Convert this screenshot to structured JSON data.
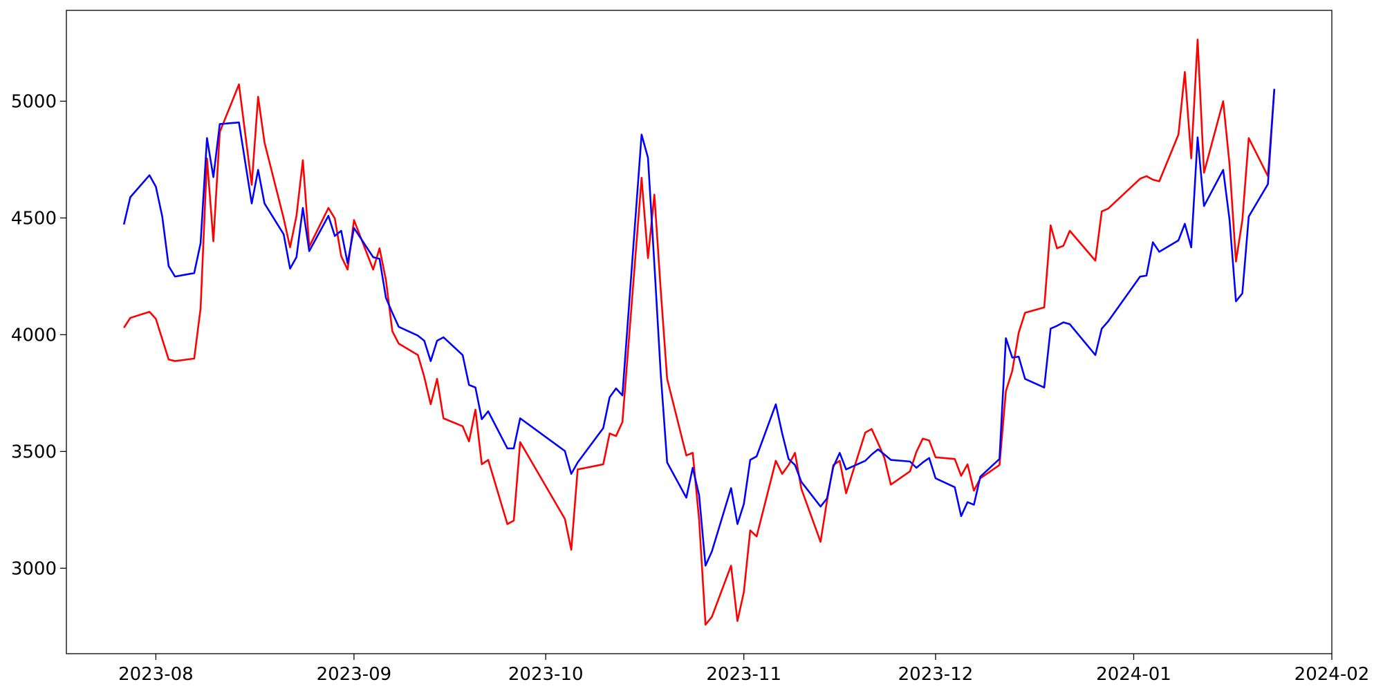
{
  "chart_data": {
    "type": "line",
    "x": [
      19565,
      19566,
      19569,
      19570,
      19571,
      19572,
      19573,
      19576,
      19577,
      19578,
      19579,
      19580,
      19583,
      19585,
      19586,
      19587,
      19590,
      19591,
      19592,
      19593,
      19594,
      19597,
      19598,
      19599,
      19600,
      19601,
      19604,
      19605,
      19606,
      19607,
      19608,
      19611,
      19612,
      19613,
      19614,
      19615,
      19618,
      19619,
      19620,
      19621,
      19622,
      19625,
      19626,
      19627,
      19634,
      19635,
      19636,
      19640,
      19641,
      19642,
      19643,
      19646,
      19647,
      19648,
      19649,
      19650,
      19653,
      19654,
      19655,
      19656,
      19657,
      19660,
      19661,
      19662,
      19663,
      19664,
      19667,
      19668,
      19669,
      19670,
      19671,
      19674,
      19675,
      19676,
      19677,
      19678,
      19681,
      19682,
      19683,
      19684,
      19685,
      19688,
      19689,
      19690,
      19691,
      19692,
      19695,
      19696,
      19697,
      19698,
      19699,
      19702,
      19703,
      19704,
      19705,
      19706,
      19709,
      19710,
      19711,
      19712,
      19713,
      19717,
      19718,
      19719,
      19724,
      19725,
      19726,
      19727,
      19730,
      19731,
      19732,
      19733,
      19734,
      19737,
      19738,
      19739,
      19740,
      19741,
      19744,
      19745
    ],
    "series": [
      {
        "color": "#ff0000",
        "values": [
          4030,
          4072,
          4098,
          4068,
          3981,
          3894,
          3887,
          3898,
          4113,
          4755,
          4400,
          4868,
          5072,
          4642,
          5019,
          4823,
          4498,
          4374,
          4509,
          4747,
          4377,
          4543,
          4498,
          4336,
          4279,
          4491,
          4279,
          4370,
          4234,
          4015,
          3962,
          3913,
          3819,
          3702,
          3811,
          3642,
          3608,
          3543,
          3679,
          3445,
          3464,
          3189,
          3204,
          3540,
          3211,
          3079,
          3423,
          3445,
          3577,
          3566,
          3626,
          4672,
          4328,
          4600,
          4189,
          3811,
          3483,
          3494,
          3208,
          2758,
          2792,
          3011,
          2774,
          2898,
          3162,
          3136,
          3460,
          3404,
          3442,
          3494,
          3340,
          3113,
          3287,
          3442,
          3460,
          3321,
          3581,
          3596,
          3536,
          3472,
          3358,
          3415,
          3498,
          3555,
          3547,
          3475,
          3468,
          3396,
          3445,
          3332,
          3385,
          3442,
          3758,
          3845,
          4008,
          4094,
          4117,
          4468,
          4370,
          4381,
          4445,
          4317,
          4528,
          4540,
          4668,
          4679,
          4664,
          4657,
          4857,
          5125,
          4755,
          5264,
          4694,
          5000,
          4728,
          4313,
          4491,
          4842,
          4679,
          5049
        ]
      },
      {
        "color": "#0000ff",
        "values": [
          4472,
          4589,
          4683,
          4634,
          4506,
          4294,
          4249,
          4264,
          4392,
          4842,
          4675,
          4902,
          4909,
          4562,
          4706,
          4562,
          4430,
          4283,
          4332,
          4543,
          4358,
          4509,
          4423,
          4445,
          4306,
          4457,
          4332,
          4325,
          4158,
          4094,
          4034,
          3996,
          3974,
          3887,
          3974,
          3989,
          3913,
          3785,
          3774,
          3638,
          3672,
          3513,
          3513,
          3642,
          3502,
          3404,
          3453,
          3600,
          3732,
          3770,
          3740,
          4857,
          4758,
          4302,
          3830,
          3453,
          3302,
          3430,
          3313,
          3011,
          3072,
          3343,
          3189,
          3275,
          3464,
          3479,
          3702,
          3577,
          3468,
          3442,
          3370,
          3264,
          3298,
          3434,
          3494,
          3423,
          3460,
          3487,
          3509,
          3487,
          3464,
          3457,
          3430,
          3453,
          3472,
          3385,
          3347,
          3223,
          3283,
          3272,
          3392,
          3468,
          3985,
          3902,
          3906,
          3811,
          3774,
          4026,
          4038,
          4053,
          4045,
          3913,
          4026,
          4057,
          4249,
          4253,
          4396,
          4355,
          4404,
          4475,
          4374,
          4845,
          4551,
          4706,
          4491,
          4143,
          4177,
          4506,
          4645,
          5053
        ]
      }
    ],
    "xlim": [
      19556,
      19754
    ],
    "xticks": [
      {
        "value": 19570,
        "label": "2023-08"
      },
      {
        "value": 19601,
        "label": "2023-09"
      },
      {
        "value": 19631,
        "label": "2023-10"
      },
      {
        "value": 19662,
        "label": "2023-11"
      },
      {
        "value": 19692,
        "label": "2023-12"
      },
      {
        "value": 19723,
        "label": "2024-01"
      },
      {
        "value": 19754,
        "label": "2024-02"
      }
    ],
    "ylim": [
      2634,
      5389
    ],
    "yticks": [
      3000,
      3500,
      4000,
      4500,
      5000
    ],
    "grid": false
  }
}
